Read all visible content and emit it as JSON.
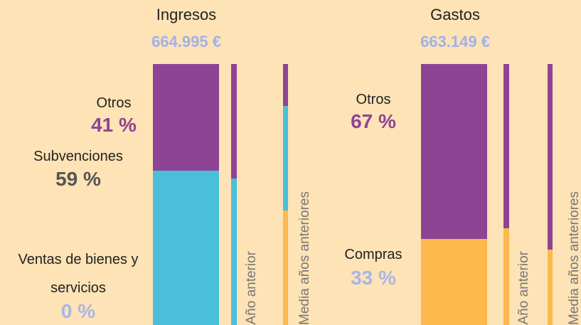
{
  "chart_data": [
    {
      "type": "bar",
      "stacked": true,
      "title": "Ingresos",
      "subtitle": "664.995 €",
      "categories": [
        null,
        "Año anterior",
        "Media años anteriores"
      ],
      "series": [
        {
          "name": "Ventas de bienes y servicios",
          "color": "#fdb94e",
          "values": [
            0,
            0,
            44
          ],
          "value_labels": [
            "0 %",
            null,
            null
          ]
        },
        {
          "name": "Subvenciones",
          "color": "#4bbfd9",
          "values": [
            59,
            56,
            40
          ],
          "value_labels": [
            "59 %",
            null,
            null
          ]
        },
        {
          "name": "Otros",
          "color": "#8e4494",
          "values": [
            41,
            44,
            16
          ],
          "value_labels": [
            "41 %",
            null,
            null
          ]
        }
      ]
    },
    {
      "type": "bar",
      "stacked": true,
      "title": "Gastos",
      "subtitle": "663.149 €",
      "categories": [
        null,
        "Año anterior",
        "Media años anteriores"
      ],
      "series": [
        {
          "name": "Compras",
          "color": "#fdb94e",
          "values": [
            33,
            37,
            29
          ],
          "value_labels": [
            "33 %",
            null,
            null
          ]
        },
        {
          "name": "Otros",
          "color": "#8e4494",
          "values": [
            67,
            63,
            71
          ],
          "value_labels": [
            "67 %",
            null,
            null
          ]
        }
      ]
    }
  ]
}
